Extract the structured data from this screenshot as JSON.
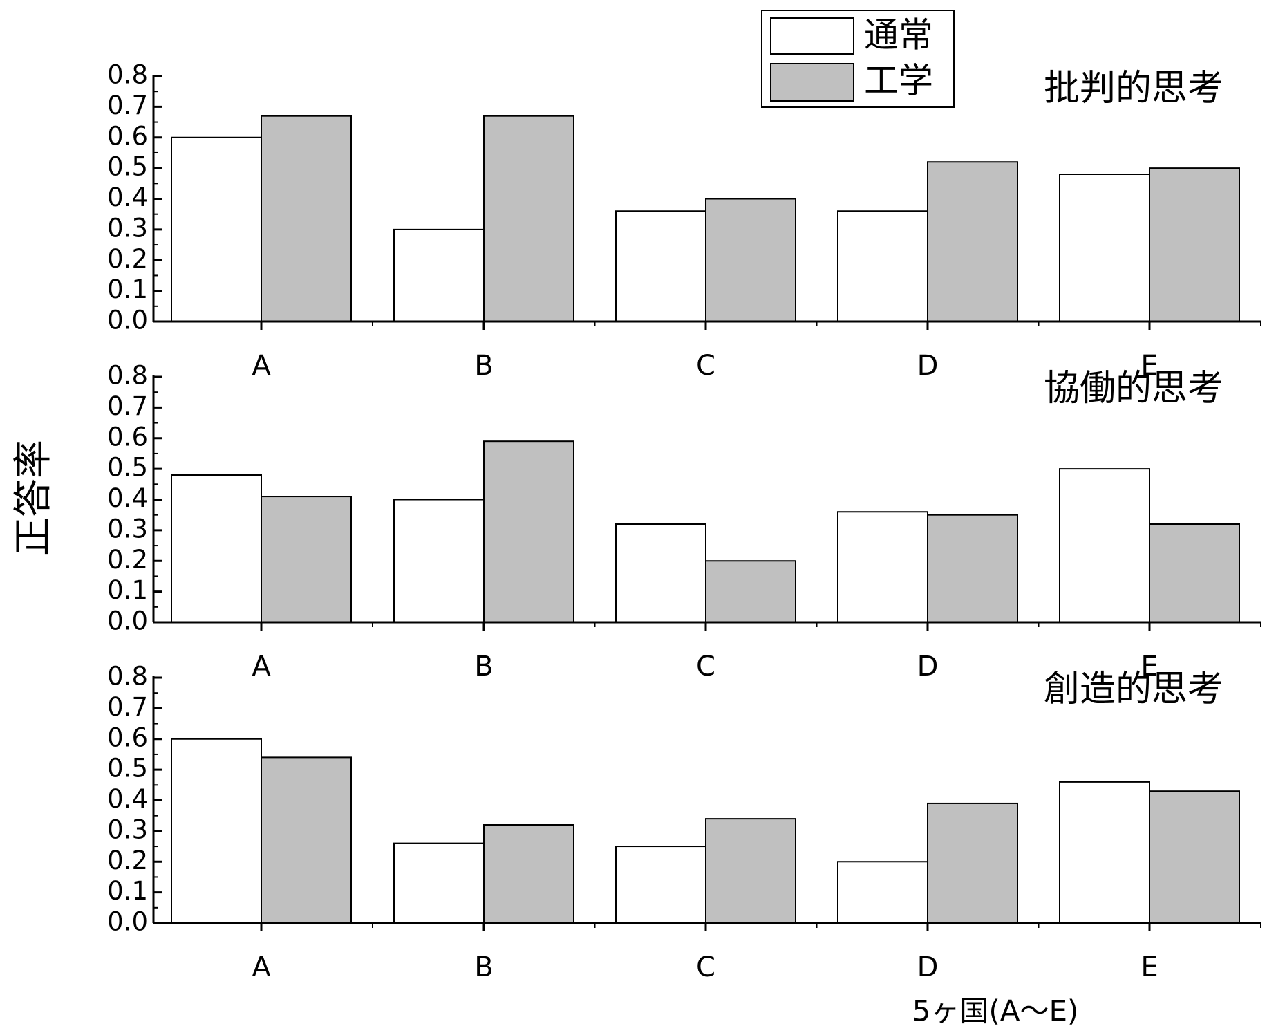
{
  "colors": {
    "series_normal": "#ffffff",
    "series_engineering": "#c0c0c0",
    "outline": "#000000"
  },
  "legend": {
    "items": [
      {
        "label": "通常",
        "color": "#ffffff"
      },
      {
        "label": "工学",
        "color": "#c0c0c0"
      }
    ]
  },
  "y_axis_title": "正答率",
  "x_axis_title": "5ヶ国(A～E)",
  "chart_data": [
    {
      "type": "bar",
      "title": "批判的思考",
      "categories": [
        "A",
        "B",
        "C",
        "D",
        "E"
      ],
      "series": [
        {
          "name": "通常",
          "values": [
            0.6,
            0.3,
            0.36,
            0.36,
            0.48
          ]
        },
        {
          "name": "工学",
          "values": [
            0.67,
            0.67,
            0.4,
            0.52,
            0.5
          ]
        }
      ],
      "ylim": [
        0,
        0.8
      ],
      "yticks": [
        "0.0",
        "0.1",
        "0.2",
        "0.3",
        "0.4",
        "0.5",
        "0.6",
        "0.7",
        "0.8"
      ],
      "grid": false
    },
    {
      "type": "bar",
      "title": "協働的思考",
      "categories": [
        "A",
        "B",
        "C",
        "D",
        "E"
      ],
      "series": [
        {
          "name": "通常",
          "values": [
            0.48,
            0.4,
            0.32,
            0.36,
            0.5
          ]
        },
        {
          "name": "工学",
          "values": [
            0.41,
            0.59,
            0.2,
            0.35,
            0.32
          ]
        }
      ],
      "ylim": [
        0,
        0.8
      ],
      "yticks": [
        "0.0",
        "0.1",
        "0.2",
        "0.3",
        "0.4",
        "0.5",
        "0.6",
        "0.7",
        "0.8"
      ],
      "grid": false
    },
    {
      "type": "bar",
      "title": "創造的思考",
      "categories": [
        "A",
        "B",
        "C",
        "D",
        "E"
      ],
      "series": [
        {
          "name": "通常",
          "values": [
            0.6,
            0.26,
            0.25,
            0.2,
            0.46
          ]
        },
        {
          "name": "工学",
          "values": [
            0.54,
            0.32,
            0.34,
            0.39,
            0.43
          ]
        }
      ],
      "ylim": [
        0,
        0.8
      ],
      "yticks": [
        "0.0",
        "0.1",
        "0.2",
        "0.3",
        "0.4",
        "0.5",
        "0.6",
        "0.7",
        "0.8"
      ],
      "grid": false
    }
  ]
}
